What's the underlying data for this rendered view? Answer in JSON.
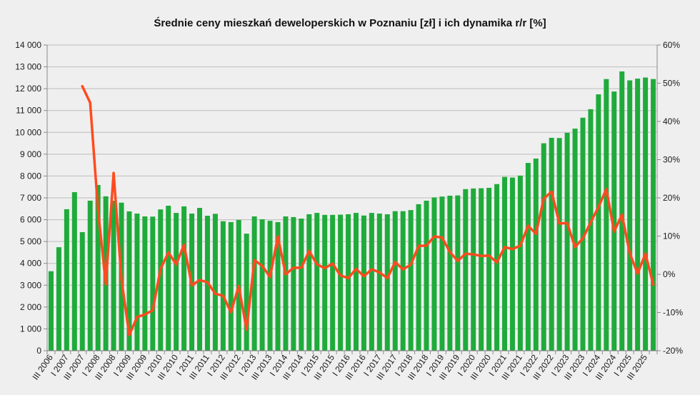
{
  "chart_data": {
    "type": "bar",
    "title": "Średnie ceny mieszkań deweloperskich w Poznaniu [zł] i ich dynamika r/r [%]",
    "categories": [
      "III 2006",
      "",
      "I 2007",
      "",
      "III 2007",
      "",
      "I 2008",
      "",
      "III 2008",
      "",
      "I 2009",
      "",
      "III 2009",
      "",
      "I 2010",
      "",
      "III 2010",
      "",
      "I 2011",
      "",
      "III 2011",
      "",
      "I 2012",
      "",
      "III 2012",
      "",
      "I 2013",
      "",
      "III 2013",
      "",
      "I 2014",
      "",
      "III 2014",
      "",
      "I 2015",
      "",
      "III 2015",
      "",
      "I 2016",
      "",
      "III 2016",
      "",
      "I 2017",
      "",
      "III 2017",
      "",
      "I 2018",
      "",
      "III 2018",
      "",
      "I 2019",
      "",
      "III 2019",
      "",
      "I 2020",
      "",
      "III 2020",
      "",
      "I 2021",
      "",
      "III 2021",
      "",
      "I 2022",
      "",
      "III 2022",
      "",
      "I 2023",
      "",
      "III 2023",
      "",
      "I 2024",
      "",
      "III 2024",
      "",
      "I 2025",
      "",
      "III 2025",
      ""
    ],
    "y_axis": {
      "range": [
        0,
        14000
      ],
      "ticks": [
        0,
        1000,
        2000,
        3000,
        4000,
        5000,
        6000,
        7000,
        8000,
        9000,
        10000,
        11000,
        12000,
        13000,
        14000
      ],
      "tick_labels": [
        "0",
        "1 000",
        "2 000",
        "3 000",
        "4 000",
        "5 000",
        "6 000",
        "7 000",
        "8 000",
        "9 000",
        "10 000",
        "11 000",
        "12 000",
        "13 000",
        "14 000"
      ]
    },
    "y2_axis": {
      "range": [
        -20,
        60
      ],
      "ticks": [
        -20,
        -10,
        0,
        10,
        20,
        30,
        40,
        50,
        60
      ],
      "tick_labels": [
        "-20%",
        "-10%",
        "0%",
        "10%",
        "20%",
        "30%",
        "40%",
        "50%",
        "60%"
      ]
    },
    "grid": true,
    "series": [
      {
        "type": "bar",
        "axis": "left",
        "color": "#1fab3b",
        "values": [
          3640,
          4740,
          6480,
          7260,
          5430,
          6870,
          7590,
          7070,
          6870,
          6780,
          6380,
          6280,
          6150,
          6140,
          6470,
          6640,
          6310,
          6610,
          6280,
          6540,
          6180,
          6270,
          5930,
          5890,
          5990,
          5360,
          6150,
          6020,
          5950,
          5890,
          6150,
          6120,
          6050,
          6250,
          6310,
          6220,
          6220,
          6230,
          6250,
          6310,
          6190,
          6310,
          6280,
          6250,
          6390,
          6390,
          6440,
          6710,
          6870,
          7020,
          7060,
          7100,
          7110,
          7400,
          7430,
          7440,
          7460,
          7630,
          7960,
          7930,
          8020,
          8600,
          8800,
          9500,
          9750,
          9740,
          9980,
          10170,
          10670,
          11060,
          11740,
          12440,
          11870,
          12790,
          12380,
          12460,
          12510,
          12440
        ]
      },
      {
        "type": "line",
        "axis": "right",
        "color": "#ff4b1f",
        "values": [
          null,
          null,
          null,
          null,
          49.2,
          44.9,
          17.1,
          -2.6,
          26.5,
          -1.3,
          -15.9,
          -11.2,
          -10.5,
          -9.4,
          1.4,
          5.7,
          2.6,
          7.7,
          -2.9,
          -1.5,
          -2.1,
          -5.1,
          -5.6,
          -9.9,
          -3.1,
          -14.5,
          3.7,
          2.2,
          -0.7,
          9.9,
          0.0,
          1.7,
          1.7,
          6.1,
          2.6,
          1.6,
          2.8,
          -0.3,
          -1.0,
          1.4,
          -0.5,
          1.3,
          0.5,
          -1.0,
          3.2,
          1.3,
          2.5,
          7.4,
          7.5,
          9.9,
          9.6,
          5.8,
          3.5,
          5.4,
          5.2,
          4.8,
          4.9,
          3.1,
          7.1,
          6.6,
          7.5,
          12.7,
          10.6,
          19.8,
          21.6,
          13.3,
          13.4,
          7.1,
          9.4,
          13.6,
          17.6,
          22.3,
          11.2,
          15.6,
          5.5,
          0.2,
          5.4,
          -2.7
        ]
      }
    ]
  }
}
